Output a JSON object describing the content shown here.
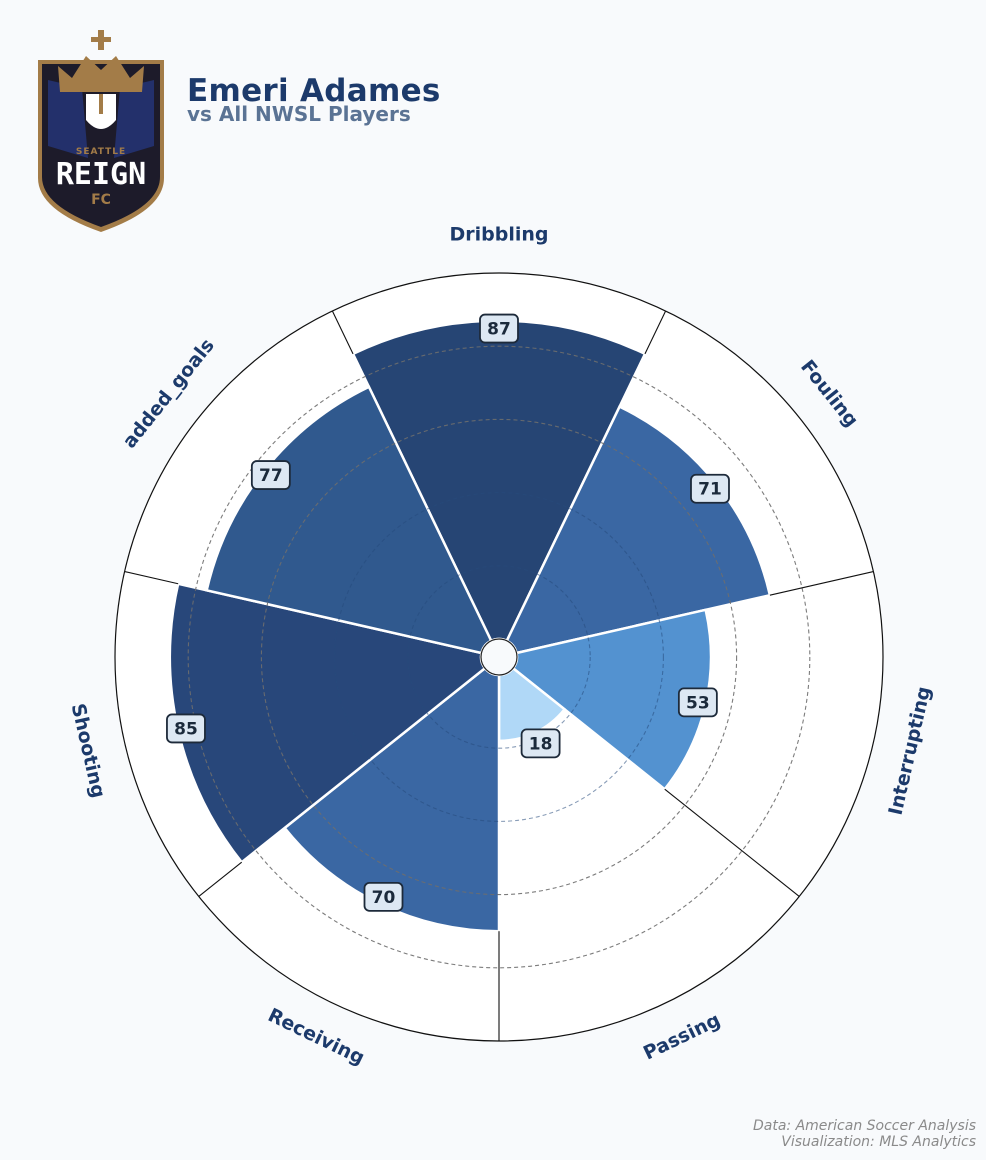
{
  "header": {
    "title": "Emeri Adames",
    "subtitle": "vs All NWSL Players",
    "logo": {
      "name": "seattle-reign-fc-logo",
      "text_top": "SEATTLE",
      "text_main": "REIGN",
      "text_bottom": "FC",
      "colors": {
        "dark": "#1d1b2a",
        "gold": "#a37c48",
        "navy": "#23306b",
        "white": "#ffffff"
      }
    }
  },
  "chart_data": {
    "type": "polar-bar",
    "title": "",
    "categories": [
      "Dribbling",
      "Fouling",
      "Interrupting",
      "Passing",
      "Receiving",
      "Shooting",
      "added_goals"
    ],
    "values": [
      87,
      71,
      53,
      18,
      70,
      85,
      77
    ],
    "colors": [
      "#264574",
      "#3a67a3",
      "#5392d0",
      "#b0d8f7",
      "#3a67a3",
      "#28477a",
      "#30598e"
    ],
    "rlim": [
      0,
      100
    ],
    "grid_rings": [
      20,
      40,
      60,
      80,
      100
    ],
    "dashed_ring_min": 60,
    "label_box_color": "#dde8f3",
    "label_color": "#1c3a6b",
    "edge_color": "#ffffff"
  },
  "footer": {
    "source": "Data: American Soccer Analysis",
    "credit": "Visualization: MLS Analytics"
  }
}
